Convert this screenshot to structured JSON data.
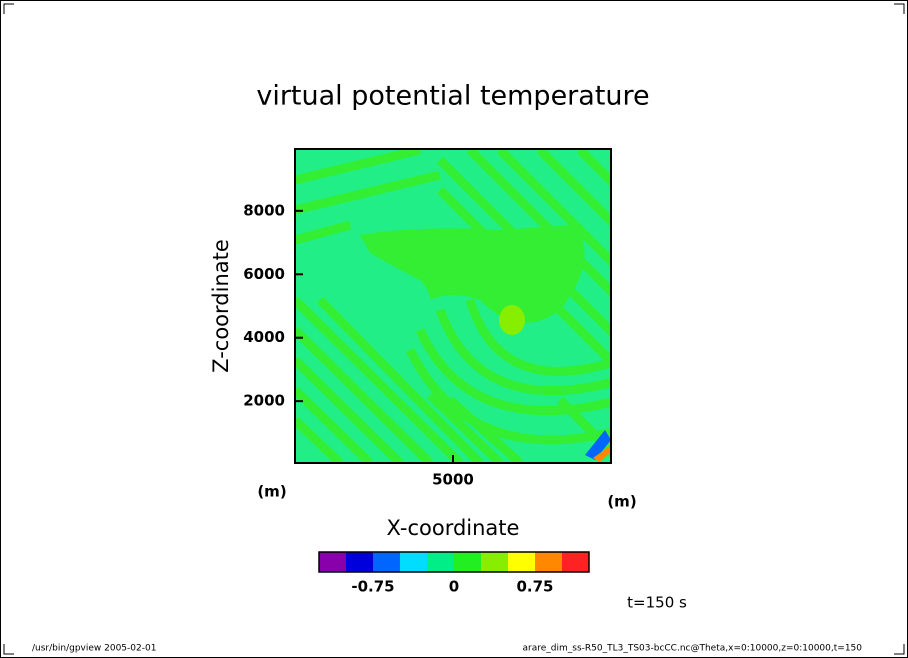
{
  "chart_data": {
    "type": "contour",
    "title": "virtual potential temperature",
    "xlabel": "X-coordinate",
    "ylabel": "Z-coordinate",
    "xunit": "(m)",
    "yunit": "(m)",
    "xlim": [
      50,
      9950
    ],
    "ylim": [
      50,
      9950
    ],
    "xticks": [
      5000
    ],
    "yticks": [
      2000,
      4000,
      6000,
      8000
    ],
    "colorbar": {
      "levels": [
        -1.25,
        -1,
        -0.75,
        -0.5,
        -0.25,
        0,
        0.25,
        0.5,
        0.75,
        1,
        1.25
      ],
      "colors": [
        "#8800aa",
        "#0000dd",
        "#0066ff",
        "#00ddff",
        "#00ee88",
        "#22ee22",
        "#88ee00",
        "#ffff00",
        "#ff8800",
        "#ff2222"
      ],
      "ticks": [
        -0.75,
        0,
        0.75
      ]
    },
    "time_label": "t=150 s",
    "footer_left": "/usr/bin/gpview  2005-02-01",
    "footer_right": "arare_dim_ss-R50_TL3_TS03-bcCC.nc@Theta,x=0:10000,z=0:10000,t=150"
  }
}
